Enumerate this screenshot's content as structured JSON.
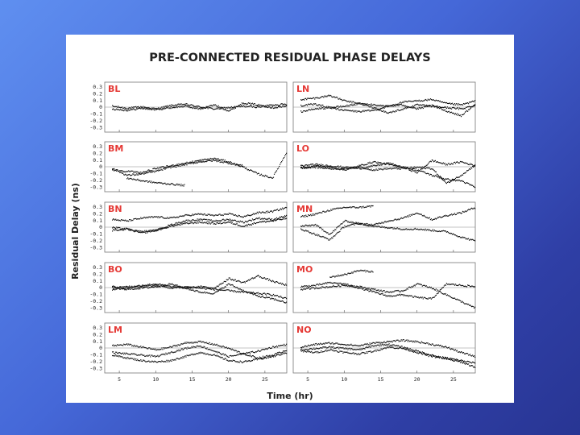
{
  "chart_data": {
    "type": "scatter",
    "title": "PRE-CONNECTED RESIDUAL PHASE DELAYS",
    "ylabel": "Residual Delay (ns)",
    "xlabel": "Time (hr)",
    "xlim": [
      3,
      28
    ],
    "ylim": [
      -0.37,
      0.37
    ],
    "x_ticks": [
      5,
      10,
      15,
      20,
      25
    ],
    "y_ticks": [
      0.3,
      0.2,
      0.1,
      0,
      -0.1,
      -0.2,
      -0.3
    ],
    "y_tick_labels": [
      "0.3",
      "0.2",
      "0.1",
      "0",
      "-0.1",
      "-0.2",
      "-0.3"
    ],
    "panels": [
      {
        "label": "BL",
        "series": [
          {
            "x": [
              4,
              6,
              8,
              10,
              12,
              14,
              16,
              18,
              20,
              22,
              24,
              26,
              28
            ],
            "y": [
              0.02,
              -0.01,
              0.01,
              -0.02,
              0.03,
              0.05,
              0.01,
              -0.02,
              0.0,
              0.02,
              0.01,
              0.04,
              0.05
            ]
          },
          {
            "x": [
              4,
              6,
              8,
              10,
              12,
              14,
              16,
              18,
              20,
              22,
              24,
              26,
              28
            ],
            "y": [
              -0.02,
              -0.04,
              -0.01,
              -0.03,
              0.0,
              0.02,
              -0.02,
              0.04,
              -0.05,
              0.07,
              0.04,
              0.0,
              0.02
            ]
          }
        ]
      },
      {
        "label": "LN",
        "series": [
          {
            "x": [
              4,
              6,
              8,
              10,
              12,
              14,
              16,
              18,
              20,
              22,
              24,
              26,
              28
            ],
            "y": [
              0.12,
              0.14,
              0.18,
              0.1,
              0.06,
              0.04,
              0.02,
              0.08,
              0.1,
              0.12,
              0.06,
              0.04,
              0.1
            ]
          },
          {
            "x": [
              4,
              6,
              8,
              10,
              12,
              14,
              16,
              18,
              20,
              22,
              24,
              26,
              28
            ],
            "y": [
              -0.06,
              -0.02,
              0.0,
              -0.04,
              -0.06,
              -0.04,
              0.02,
              0.04,
              -0.02,
              0.03,
              -0.05,
              -0.12,
              0.05
            ]
          },
          {
            "x": [
              4,
              6,
              8,
              10,
              12,
              14,
              16,
              18,
              20,
              22,
              24,
              26,
              28
            ],
            "y": [
              0.03,
              0.05,
              0.0,
              0.02,
              0.06,
              0.0,
              -0.08,
              -0.02,
              0.04,
              0.02,
              0.0,
              -0.02,
              0.04
            ]
          }
        ]
      },
      {
        "label": "BM",
        "series": [
          {
            "x": [
              4,
              6,
              8,
              10,
              12,
              14,
              16,
              18,
              20,
              22,
              24,
              26,
              28
            ],
            "y": [
              -0.04,
              -0.06,
              -0.08,
              -0.02,
              0.02,
              0.06,
              0.1,
              0.13,
              0.08,
              0.0,
              -0.1,
              -0.16,
              0.24
            ]
          },
          {
            "x": [
              4,
              6,
              8,
              10,
              12,
              14,
              16,
              18,
              20,
              22
            ],
            "y": [
              -0.02,
              -0.12,
              -0.1,
              -0.06,
              0.0,
              0.04,
              0.08,
              0.1,
              0.06,
              0.02
            ]
          },
          {
            "x": [
              6,
              8,
              10,
              12,
              14
            ],
            "y": [
              -0.16,
              -0.2,
              -0.23,
              -0.25,
              -0.27
            ]
          }
        ]
      },
      {
        "label": "LO",
        "series": [
          {
            "x": [
              4,
              6,
              8,
              10,
              12,
              14,
              16,
              18,
              20,
              22,
              24,
              26,
              28
            ],
            "y": [
              -0.02,
              0.02,
              0.0,
              -0.04,
              0.02,
              0.08,
              0.04,
              0.0,
              -0.04,
              -0.12,
              -0.18,
              -0.2,
              -0.3
            ]
          },
          {
            "x": [
              4,
              6,
              8,
              10,
              12,
              14,
              16,
              18,
              20,
              22,
              24,
              26,
              28
            ],
            "y": [
              0.02,
              0.04,
              0.02,
              0.0,
              -0.02,
              0.02,
              0.06,
              0.0,
              -0.08,
              0.1,
              0.04,
              0.08,
              0.02
            ]
          },
          {
            "x": [
              4,
              6,
              8,
              10,
              12,
              14,
              16,
              18,
              20,
              22,
              24,
              26,
              28
            ],
            "y": [
              0.0,
              0.0,
              -0.02,
              -0.02,
              0.0,
              -0.04,
              -0.02,
              -0.02,
              0.0,
              -0.02,
              -0.24,
              -0.12,
              0.04
            ]
          }
        ]
      },
      {
        "label": "BN",
        "series": [
          {
            "x": [
              4,
              6,
              8,
              10,
              12,
              14,
              16,
              18,
              20,
              22,
              24,
              26,
              28
            ],
            "y": [
              0.12,
              0.1,
              0.14,
              0.16,
              0.14,
              0.18,
              0.2,
              0.18,
              0.2,
              0.16,
              0.22,
              0.24,
              0.3
            ]
          },
          {
            "x": [
              4,
              6,
              8,
              10,
              12,
              14,
              16,
              18,
              20,
              22,
              24,
              26,
              28
            ],
            "y": [
              -0.04,
              -0.02,
              -0.06,
              -0.04,
              0.04,
              0.1,
              0.12,
              0.1,
              0.12,
              0.08,
              0.14,
              0.12,
              0.18
            ]
          },
          {
            "x": [
              4,
              6,
              8,
              10,
              12,
              14,
              16,
              18,
              20,
              22,
              24,
              26,
              28
            ],
            "y": [
              0.0,
              -0.02,
              -0.08,
              -0.04,
              0.02,
              0.06,
              0.08,
              0.06,
              0.08,
              0.02,
              0.08,
              0.1,
              0.14
            ]
          }
        ]
      },
      {
        "label": "MN",
        "series": [
          {
            "x": [
              4,
              6,
              8,
              10,
              12,
              14
            ],
            "y": [
              0.16,
              0.2,
              0.26,
              0.3,
              0.3,
              0.32
            ]
          },
          {
            "x": [
              4,
              6,
              8,
              10,
              12,
              14,
              16,
              18,
              20,
              22,
              24,
              26,
              28
            ],
            "y": [
              0.02,
              0.04,
              -0.1,
              0.1,
              0.06,
              0.02,
              0.0,
              -0.02,
              -0.02,
              -0.04,
              -0.06,
              -0.14,
              -0.2
            ]
          },
          {
            "x": [
              4,
              6,
              8,
              10,
              12,
              14,
              16,
              18,
              20,
              22,
              24,
              26,
              28
            ],
            "y": [
              -0.02,
              -0.1,
              -0.18,
              0.02,
              0.06,
              0.04,
              0.1,
              0.14,
              0.22,
              0.12,
              0.18,
              0.22,
              0.3
            ]
          }
        ]
      },
      {
        "label": "BO",
        "series": [
          {
            "x": [
              4,
              6,
              8,
              10,
              12,
              14,
              16,
              18,
              20,
              22,
              24,
              26,
              28
            ],
            "y": [
              -0.02,
              0.0,
              0.04,
              0.06,
              0.02,
              0.0,
              0.02,
              0.0,
              0.14,
              0.08,
              0.18,
              0.1,
              0.04
            ]
          },
          {
            "x": [
              4,
              6,
              8,
              10,
              12,
              14,
              16,
              18,
              20,
              22,
              24,
              26,
              28
            ],
            "y": [
              0.02,
              -0.02,
              0.0,
              0.02,
              0.06,
              0.0,
              -0.06,
              -0.08,
              0.06,
              -0.04,
              -0.12,
              -0.16,
              -0.22
            ]
          },
          {
            "x": [
              4,
              6,
              8,
              10,
              12,
              14,
              16,
              18,
              20,
              22,
              24,
              26,
              28
            ],
            "y": [
              0.0,
              0.02,
              0.02,
              0.04,
              0.0,
              0.02,
              0.0,
              -0.02,
              -0.04,
              -0.06,
              -0.08,
              -0.1,
              -0.16
            ]
          }
        ]
      },
      {
        "label": "MO",
        "series": [
          {
            "x": [
              8,
              10,
              12,
              14
            ],
            "y": [
              0.16,
              0.2,
              0.26,
              0.24
            ]
          },
          {
            "x": [
              4,
              6,
              8,
              10,
              12,
              14,
              16,
              18,
              20,
              22,
              24,
              26,
              28
            ],
            "y": [
              0.02,
              0.04,
              0.08,
              0.06,
              0.0,
              -0.06,
              -0.12,
              -0.1,
              -0.14,
              -0.16,
              0.06,
              0.04,
              0.02
            ]
          },
          {
            "x": [
              4,
              6,
              8,
              10,
              12,
              14,
              16,
              18,
              20,
              22,
              24,
              26,
              28
            ],
            "y": [
              -0.02,
              0.0,
              0.02,
              0.04,
              0.02,
              -0.02,
              -0.06,
              -0.04,
              0.06,
              0.0,
              -0.1,
              -0.2,
              -0.3
            ]
          }
        ]
      },
      {
        "label": "LM",
        "series": [
          {
            "x": [
              4,
              6,
              8,
              10,
              12,
              14,
              16,
              18,
              20,
              22,
              24,
              26,
              28
            ],
            "y": [
              0.04,
              0.06,
              0.02,
              -0.02,
              0.02,
              0.08,
              0.1,
              0.06,
              0.0,
              -0.08,
              -0.04,
              0.02,
              0.06
            ]
          },
          {
            "x": [
              4,
              6,
              8,
              10,
              12,
              14,
              16,
              18,
              20,
              22,
              24,
              26,
              28
            ],
            "y": [
              -0.06,
              -0.08,
              -0.1,
              -0.12,
              -0.06,
              0.0,
              0.04,
              -0.04,
              -0.12,
              -0.08,
              -0.14,
              -0.1,
              -0.02
            ]
          },
          {
            "x": [
              4,
              6,
              8,
              10,
              12,
              14,
              16,
              18,
              20,
              22,
              24,
              26,
              28
            ],
            "y": [
              -0.1,
              -0.14,
              -0.18,
              -0.2,
              -0.18,
              -0.12,
              -0.06,
              -0.1,
              -0.18,
              -0.2,
              -0.16,
              -0.12,
              -0.06
            ]
          }
        ]
      },
      {
        "label": "NO",
        "series": [
          {
            "x": [
              4,
              6,
              8,
              10,
              12,
              14,
              16,
              18,
              20,
              22,
              24,
              26,
              28
            ],
            "y": [
              0.02,
              0.06,
              0.08,
              0.06,
              0.04,
              0.08,
              0.1,
              0.12,
              0.1,
              0.06,
              0.02,
              -0.06,
              -0.12
            ]
          },
          {
            "x": [
              4,
              6,
              8,
              10,
              12,
              14,
              16,
              18,
              20,
              22,
              24,
              26,
              28
            ],
            "y": [
              -0.02,
              0.0,
              0.02,
              0.0,
              -0.02,
              0.04,
              0.06,
              0.02,
              -0.04,
              -0.1,
              -0.16,
              -0.2,
              -0.28
            ]
          },
          {
            "x": [
              4,
              6,
              8,
              10,
              12,
              14,
              16,
              18,
              20,
              22,
              24,
              26,
              28
            ],
            "y": [
              -0.04,
              -0.06,
              -0.02,
              -0.06,
              -0.08,
              -0.04,
              0.02,
              0.0,
              -0.06,
              -0.12,
              -0.14,
              -0.18,
              -0.22
            ]
          }
        ]
      }
    ]
  }
}
